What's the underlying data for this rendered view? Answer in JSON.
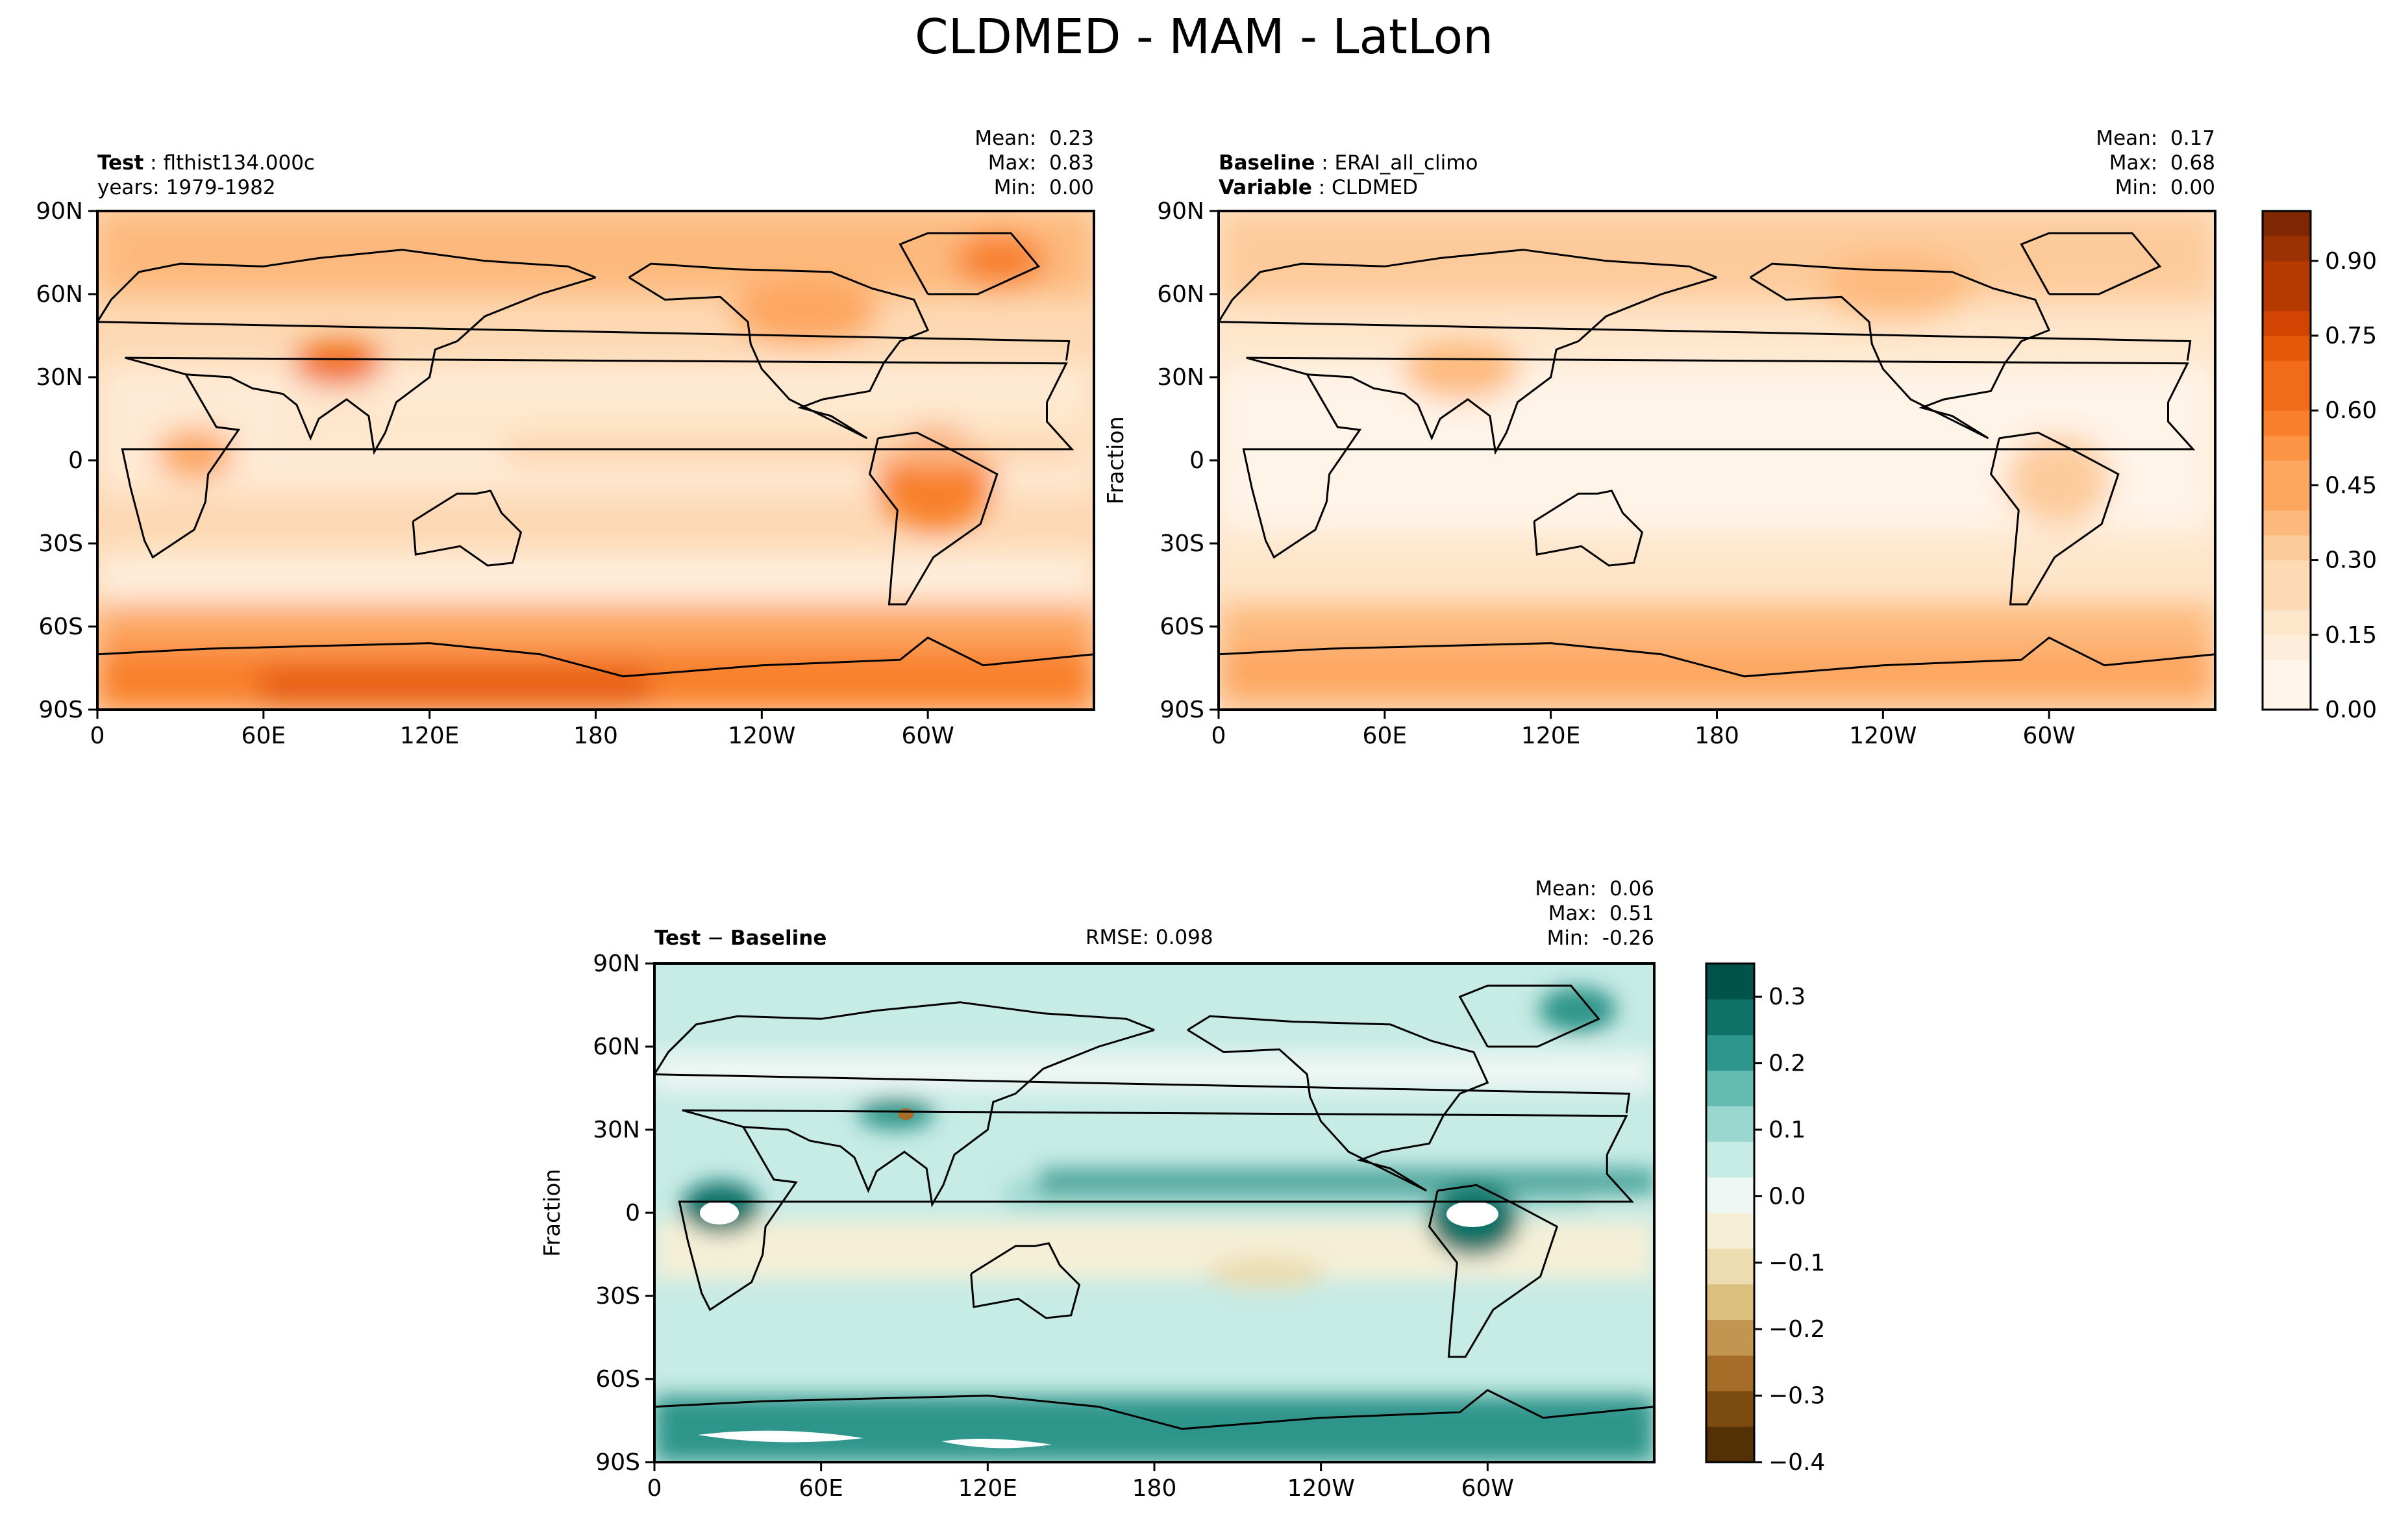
{
  "title": "CLDMED - MAM - LatLon",
  "chart_data": [
    {
      "type": "heatmap",
      "panel": "test",
      "field": "CLDMED",
      "units": "Fraction",
      "header": {
        "label": "Test",
        "value": "flthist134.000c"
      },
      "subheader": "years: 1979-1982",
      "stats": {
        "mean": "0.23",
        "max": "0.83",
        "min": "0.00"
      },
      "xticks": [
        "0",
        "60E",
        "120E",
        "180",
        "120W",
        "60W"
      ],
      "yticks": [
        "90N",
        "60N",
        "30N",
        "0",
        "30S",
        "60S",
        "90S"
      ],
      "xlim": [
        0,
        360
      ],
      "ylim": [
        -90,
        90
      ],
      "colormap": "Oranges",
      "levels": [
        0.0,
        0.05,
        0.1,
        0.15,
        0.2,
        0.25,
        0.3,
        0.35,
        0.4,
        0.45,
        0.5,
        0.55,
        0.6,
        0.65,
        0.7,
        0.75,
        0.8,
        0.85,
        0.9,
        0.95,
        1.0
      ]
    },
    {
      "type": "heatmap",
      "panel": "baseline",
      "field": "CLDMED",
      "units": "Fraction",
      "header": {
        "label": "Baseline",
        "value": "ERAI_all_climo"
      },
      "subheader": {
        "label": "Variable",
        "value": "CLDMED"
      },
      "stats": {
        "mean": "0.17",
        "max": "0.68",
        "min": "0.00"
      },
      "ylabel": "Fraction",
      "xticks": [
        "0",
        "60E",
        "120E",
        "180",
        "120W",
        "60W"
      ],
      "yticks": [
        "90N",
        "60N",
        "30N",
        "0",
        "30S",
        "60S",
        "90S"
      ],
      "xlim": [
        0,
        360
      ],
      "ylim": [
        -90,
        90
      ],
      "colorbar": {
        "ticks": [
          "0.00",
          "0.15",
          "0.30",
          "0.45",
          "0.60",
          "0.75",
          "0.90"
        ],
        "range": [
          0,
          1.0
        ]
      }
    },
    {
      "type": "heatmap",
      "panel": "difference",
      "field": "CLDMED",
      "units": "Fraction",
      "header": {
        "label": "Test",
        "sep": "−",
        "label2": "Baseline"
      },
      "rmse": "RMSE: 0.098",
      "stats": {
        "mean": "0.06",
        "max": "0.51",
        "min": "-0.26"
      },
      "ylabel": "Fraction",
      "xticks": [
        "0",
        "60E",
        "120E",
        "180",
        "120W",
        "60W"
      ],
      "yticks": [
        "90N",
        "60N",
        "30N",
        "0",
        "30S",
        "60S",
        "90S"
      ],
      "xlim": [
        0,
        360
      ],
      "ylim": [
        -90,
        90
      ],
      "colormap": "BrBG",
      "colorbar": {
        "ticks": [
          "0.3",
          "0.2",
          "0.1",
          "0.0",
          "−0.1",
          "−0.2",
          "−0.3",
          "−0.4"
        ],
        "range": [
          -0.4,
          0.35
        ]
      }
    }
  ],
  "stat_labels": {
    "mean": "Mean:",
    "max": "Max:",
    "min": "Min:"
  },
  "colors": {
    "oranges": [
      "#fff5eb",
      "#feeddb",
      "#fee6cb",
      "#fdd9b4",
      "#fdcb9b",
      "#fdb97d",
      "#fda660",
      "#fd9345",
      "#f8802c",
      "#f16b18",
      "#e5580a",
      "#d14401",
      "#b53a02",
      "#9b3203",
      "#7f2704"
    ],
    "brbg": [
      "#543005",
      "#7b4b0f",
      "#a46c26",
      "#c29551",
      "#dcc07d",
      "#ecdcb0",
      "#f5efd7",
      "#eef6f3",
      "#c7ebe5",
      "#9ad8cf",
      "#64bbb0",
      "#2d958b",
      "#0e7268",
      "#00534a"
    ]
  }
}
